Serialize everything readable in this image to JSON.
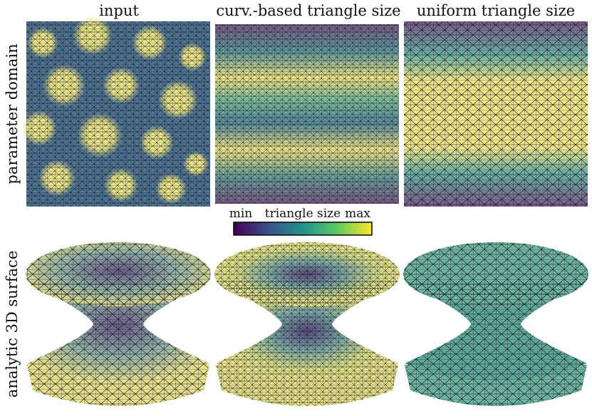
{
  "columns": [
    "input",
    "curv.-based triangle size",
    "uniform triangle size"
  ],
  "rows": [
    "parameter domain",
    "analytic 3D surface"
  ],
  "colorbar": {
    "min": "min",
    "label": "triangle size",
    "max": "max"
  }
}
